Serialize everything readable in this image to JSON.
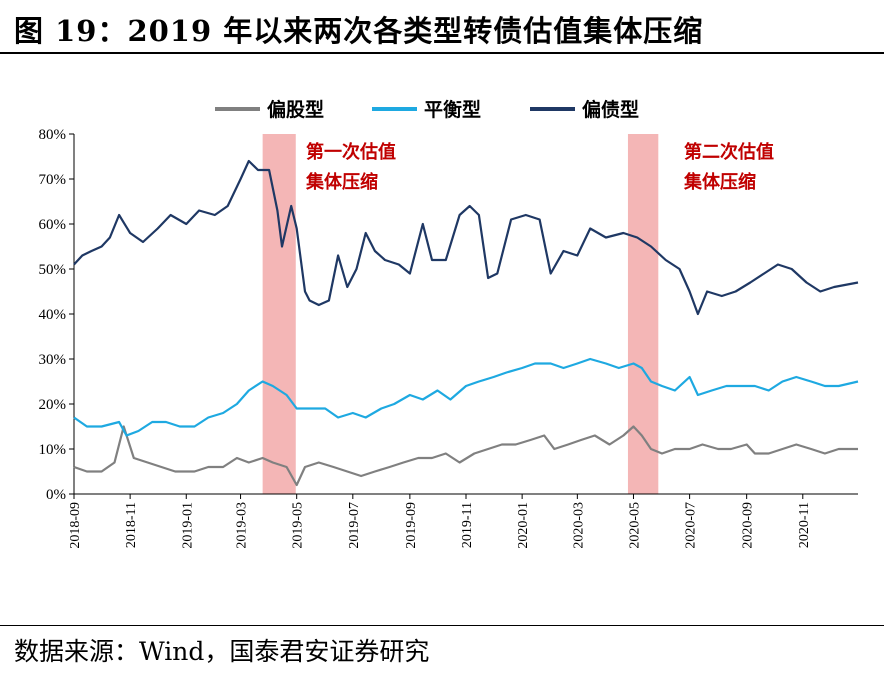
{
  "figure": {
    "title": "图 19：2019 年以来两次各类型转债估值集体压缩",
    "source": "数据来源：Wind，国泰君安证券研究"
  },
  "chart_data": {
    "type": "line",
    "x_axis": {
      "type": "date",
      "range": [
        "2018-09-01",
        "2020-12-31"
      ],
      "tick_labels": [
        "2018-09",
        "2018-11",
        "2019-01",
        "2019-03",
        "2019-05",
        "2019-07",
        "2019-09",
        "2019-11",
        "2020-01",
        "2020-03",
        "2020-05",
        "2020-07",
        "2020-09",
        "2020-11"
      ]
    },
    "y_axis": {
      "ylim": [
        0,
        80
      ],
      "tick_labels": [
        "0%",
        "10%",
        "20%",
        "30%",
        "40%",
        "50%",
        "60%",
        "70%",
        "80%"
      ]
    },
    "grid": false,
    "legend": {
      "placement": "top-center"
    },
    "series": [
      {
        "name": "偏股型",
        "color": "#808080",
        "points": [
          [
            "2018-09-01",
            6
          ],
          [
            "2018-09-15",
            5
          ],
          [
            "2018-10-01",
            5
          ],
          [
            "2018-10-15",
            7
          ],
          [
            "2018-10-25",
            15
          ],
          [
            "2018-11-05",
            8
          ],
          [
            "2018-11-20",
            7
          ],
          [
            "2018-12-05",
            6
          ],
          [
            "2018-12-20",
            5
          ],
          [
            "2019-01-10",
            5
          ],
          [
            "2019-01-25",
            6
          ],
          [
            "2019-02-10",
            6
          ],
          [
            "2019-02-25",
            8
          ],
          [
            "2019-03-10",
            7
          ],
          [
            "2019-03-25",
            8
          ],
          [
            "2019-04-05",
            7
          ],
          [
            "2019-04-20",
            6
          ],
          [
            "2019-05-01",
            2
          ],
          [
            "2019-05-10",
            6
          ],
          [
            "2019-05-25",
            7
          ],
          [
            "2019-06-10",
            6
          ],
          [
            "2019-06-25",
            5
          ],
          [
            "2019-07-10",
            4
          ],
          [
            "2019-07-25",
            5
          ],
          [
            "2019-08-10",
            6
          ],
          [
            "2019-08-25",
            7
          ],
          [
            "2019-09-10",
            8
          ],
          [
            "2019-09-25",
            8
          ],
          [
            "2019-10-10",
            9
          ],
          [
            "2019-10-25",
            7
          ],
          [
            "2019-11-10",
            9
          ],
          [
            "2019-11-25",
            10
          ],
          [
            "2019-12-10",
            11
          ],
          [
            "2019-12-25",
            11
          ],
          [
            "2020-01-10",
            12
          ],
          [
            "2020-01-25",
            13
          ],
          [
            "2020-02-05",
            10
          ],
          [
            "2020-02-20",
            11
          ],
          [
            "2020-03-05",
            12
          ],
          [
            "2020-03-20",
            13
          ],
          [
            "2020-04-05",
            11
          ],
          [
            "2020-04-20",
            13
          ],
          [
            "2020-05-01",
            15
          ],
          [
            "2020-05-10",
            13
          ],
          [
            "2020-05-20",
            10
          ],
          [
            "2020-06-01",
            9
          ],
          [
            "2020-06-15",
            10
          ],
          [
            "2020-07-01",
            10
          ],
          [
            "2020-07-15",
            11
          ],
          [
            "2020-08-01",
            10
          ],
          [
            "2020-08-15",
            10
          ],
          [
            "2020-09-01",
            11
          ],
          [
            "2020-09-10",
            9
          ],
          [
            "2020-09-25",
            9
          ],
          [
            "2020-10-10",
            10
          ],
          [
            "2020-10-25",
            11
          ],
          [
            "2020-11-10",
            10
          ],
          [
            "2020-11-25",
            9
          ],
          [
            "2020-12-10",
            10
          ],
          [
            "2020-12-31",
            10
          ]
        ]
      },
      {
        "name": "平衡型",
        "color": "#1ea9e1",
        "points": [
          [
            "2018-09-01",
            17
          ],
          [
            "2018-09-15",
            15
          ],
          [
            "2018-10-01",
            15
          ],
          [
            "2018-10-20",
            16
          ],
          [
            "2018-10-28",
            13
          ],
          [
            "2018-11-10",
            14
          ],
          [
            "2018-11-25",
            16
          ],
          [
            "2018-12-10",
            16
          ],
          [
            "2018-12-25",
            15
          ],
          [
            "2019-01-10",
            15
          ],
          [
            "2019-01-25",
            17
          ],
          [
            "2019-02-10",
            18
          ],
          [
            "2019-02-25",
            20
          ],
          [
            "2019-03-10",
            23
          ],
          [
            "2019-03-25",
            25
          ],
          [
            "2019-04-05",
            24
          ],
          [
            "2019-04-20",
            22
          ],
          [
            "2019-05-01",
            19
          ],
          [
            "2019-05-15",
            19
          ],
          [
            "2019-06-01",
            19
          ],
          [
            "2019-06-15",
            17
          ],
          [
            "2019-07-01",
            18
          ],
          [
            "2019-07-15",
            17
          ],
          [
            "2019-08-01",
            19
          ],
          [
            "2019-08-15",
            20
          ],
          [
            "2019-09-01",
            22
          ],
          [
            "2019-09-15",
            21
          ],
          [
            "2019-10-01",
            23
          ],
          [
            "2019-10-15",
            21
          ],
          [
            "2019-11-01",
            24
          ],
          [
            "2019-11-15",
            25
          ],
          [
            "2019-12-01",
            26
          ],
          [
            "2019-12-15",
            27
          ],
          [
            "2020-01-01",
            28
          ],
          [
            "2020-01-15",
            29
          ],
          [
            "2020-02-01",
            29
          ],
          [
            "2020-02-15",
            28
          ],
          [
            "2020-03-01",
            29
          ],
          [
            "2020-03-15",
            30
          ],
          [
            "2020-04-01",
            29
          ],
          [
            "2020-04-15",
            28
          ],
          [
            "2020-05-01",
            29
          ],
          [
            "2020-05-10",
            28
          ],
          [
            "2020-05-20",
            25
          ],
          [
            "2020-06-01",
            24
          ],
          [
            "2020-06-15",
            23
          ],
          [
            "2020-07-01",
            26
          ],
          [
            "2020-07-10",
            22
          ],
          [
            "2020-07-25",
            23
          ],
          [
            "2020-08-10",
            24
          ],
          [
            "2020-08-25",
            24
          ],
          [
            "2020-09-10",
            24
          ],
          [
            "2020-09-25",
            23
          ],
          [
            "2020-10-10",
            25
          ],
          [
            "2020-10-25",
            26
          ],
          [
            "2020-11-10",
            25
          ],
          [
            "2020-11-25",
            24
          ],
          [
            "2020-12-10",
            24
          ],
          [
            "2020-12-31",
            25
          ]
        ]
      },
      {
        "name": "偏债型",
        "color": "#1f3864",
        "points": [
          [
            "2018-09-01",
            51
          ],
          [
            "2018-09-10",
            53
          ],
          [
            "2018-09-20",
            54
          ],
          [
            "2018-10-01",
            55
          ],
          [
            "2018-10-10",
            57
          ],
          [
            "2018-10-20",
            62
          ],
          [
            "2018-11-01",
            58
          ],
          [
            "2018-11-15",
            56
          ],
          [
            "2018-12-01",
            59
          ],
          [
            "2018-12-15",
            62
          ],
          [
            "2019-01-01",
            60
          ],
          [
            "2019-01-15",
            63
          ],
          [
            "2019-02-01",
            62
          ],
          [
            "2019-02-15",
            64
          ],
          [
            "2019-03-01",
            70
          ],
          [
            "2019-03-10",
            74
          ],
          [
            "2019-03-20",
            72
          ],
          [
            "2019-04-01",
            72
          ],
          [
            "2019-04-10",
            63
          ],
          [
            "2019-04-15",
            55
          ],
          [
            "2019-04-25",
            64
          ],
          [
            "2019-05-01",
            59
          ],
          [
            "2019-05-10",
            45
          ],
          [
            "2019-05-15",
            43
          ],
          [
            "2019-05-25",
            42
          ],
          [
            "2019-06-05",
            43
          ],
          [
            "2019-06-15",
            53
          ],
          [
            "2019-06-25",
            46
          ],
          [
            "2019-07-05",
            50
          ],
          [
            "2019-07-15",
            58
          ],
          [
            "2019-07-25",
            54
          ],
          [
            "2019-08-05",
            52
          ],
          [
            "2019-08-20",
            51
          ],
          [
            "2019-09-01",
            49
          ],
          [
            "2019-09-15",
            60
          ],
          [
            "2019-09-25",
            52
          ],
          [
            "2019-10-10",
            52
          ],
          [
            "2019-10-25",
            62
          ],
          [
            "2019-11-05",
            64
          ],
          [
            "2019-11-15",
            62
          ],
          [
            "2019-11-25",
            48
          ],
          [
            "2019-12-05",
            49
          ],
          [
            "2019-12-20",
            61
          ],
          [
            "2020-01-05",
            62
          ],
          [
            "2020-01-20",
            61
          ],
          [
            "2020-02-01",
            49
          ],
          [
            "2020-02-15",
            54
          ],
          [
            "2020-03-01",
            53
          ],
          [
            "2020-03-15",
            59
          ],
          [
            "2020-04-01",
            57
          ],
          [
            "2020-04-20",
            58
          ],
          [
            "2020-05-05",
            57
          ],
          [
            "2020-05-20",
            55
          ],
          [
            "2020-06-05",
            52
          ],
          [
            "2020-06-20",
            50
          ],
          [
            "2020-07-01",
            45
          ],
          [
            "2020-07-10",
            40
          ],
          [
            "2020-07-20",
            45
          ],
          [
            "2020-08-05",
            44
          ],
          [
            "2020-08-20",
            45
          ],
          [
            "2020-09-05",
            47
          ],
          [
            "2020-09-20",
            49
          ],
          [
            "2020-10-05",
            51
          ],
          [
            "2020-10-20",
            50
          ],
          [
            "2020-11-05",
            47
          ],
          [
            "2020-11-20",
            45
          ],
          [
            "2020-12-05",
            46
          ],
          [
            "2020-12-31",
            47
          ]
        ]
      }
    ],
    "shaded_periods": [
      {
        "label": "第一次估值集体压缩",
        "start": "2019-03-25",
        "end": "2019-04-30",
        "label_lines": [
          "第一次估值",
          "集体压缩"
        ]
      },
      {
        "label": "第二次估值集体压缩",
        "start": "2020-04-25",
        "end": "2020-05-28",
        "label_lines": [
          "第二次估值",
          "集体压缩"
        ]
      }
    ],
    "shade_color": "#f4b6b6",
    "annotation_color": "#c00000"
  }
}
